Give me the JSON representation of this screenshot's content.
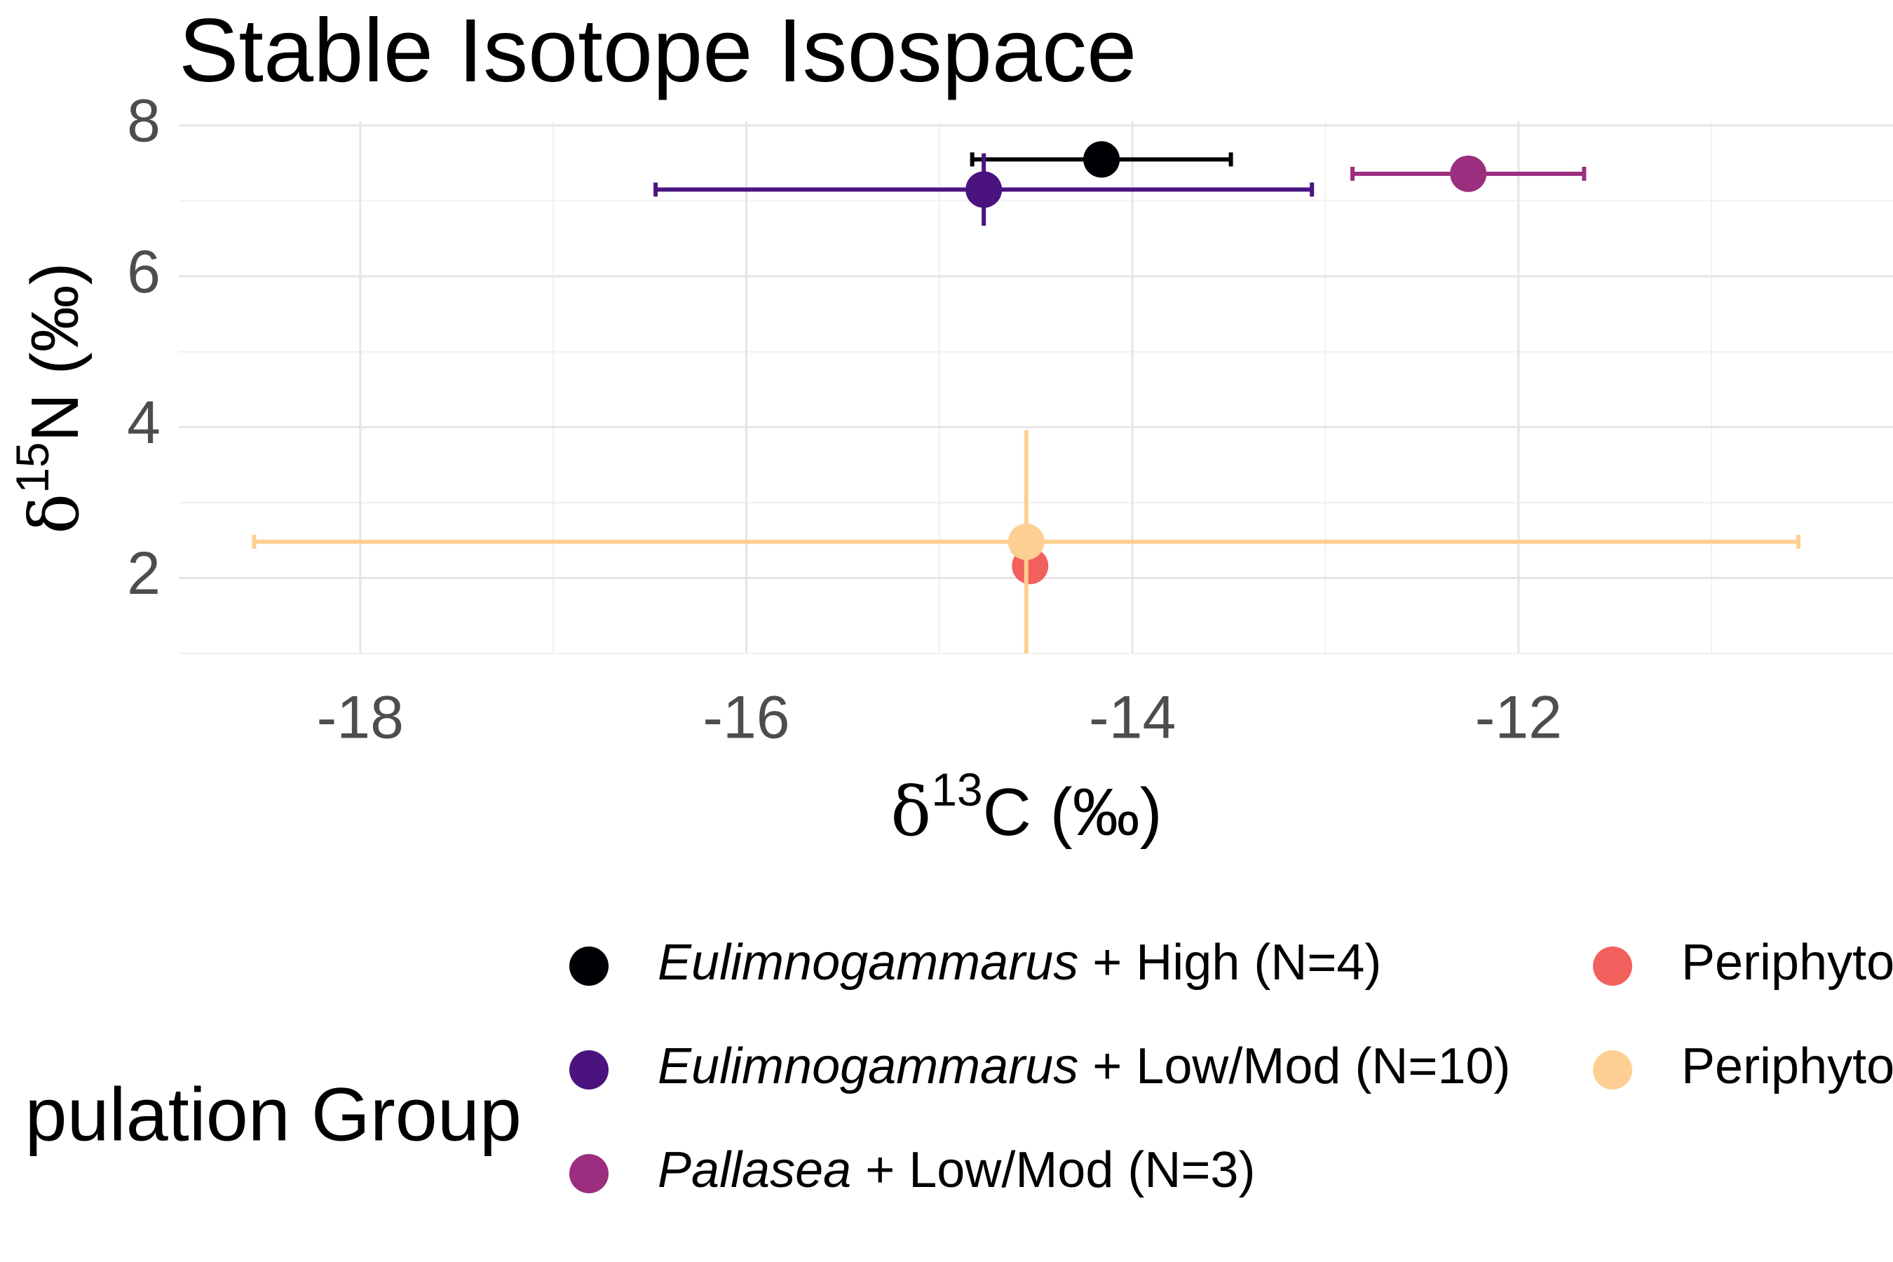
{
  "chart_data": {
    "type": "scatter",
    "title": "Stable Isotope Isospace",
    "x_label": {
      "symbol": "δ",
      "sup": "13",
      "text": "C (‰)"
    },
    "y_label": {
      "symbol": "δ",
      "sup": "15",
      "text": "N (‰)"
    },
    "xlim": [
      -18.94,
      -10.06
    ],
    "xticks": [
      -18,
      -16,
      -14,
      -12
    ],
    "ylim": [
      1.0,
      8.05
    ],
    "yticks": [
      2,
      4,
      6,
      8
    ],
    "grid": true,
    "legend_title": "pulation Group",
    "series": [
      {
        "name": "Eulimnogammarus + High (N=4)",
        "italic_first_word": true,
        "color": "#000004",
        "x": [
          -14.16
        ],
        "values": [
          7.55
        ],
        "xerr": [
          0.67
        ],
        "yerr": [
          0.1
        ]
      },
      {
        "name": "Eulimnogammarus + Low/Mod (N=10)",
        "italic_first_word": true,
        "color": "#4b1380",
        "x": [
          -14.77
        ],
        "values": [
          7.15
        ],
        "xerr": [
          1.7
        ],
        "yerr": [
          0.48
        ]
      },
      {
        "name": "Pallasea + Low/Mod (N=3)",
        "italic_first_word": true,
        "color": "#9c2e7f",
        "x": [
          -12.26
        ],
        "values": [
          7.36
        ],
        "xerr": [
          0.6
        ],
        "yerr": [
          0.05
        ]
      },
      {
        "name": "Periphyto",
        "italic_first_word": false,
        "color": "#f1605d",
        "x": [
          -14.53
        ],
        "values": [
          2.16
        ],
        "xerr": [
          0.05
        ],
        "yerr": [
          0.05
        ]
      },
      {
        "name": "Periphyto",
        "italic_first_word": false,
        "color": "#fecf92",
        "x": [
          -14.55
        ],
        "values": [
          2.48
        ],
        "xerr": [
          4.0
        ],
        "yerr": [
          1.48
        ]
      }
    ]
  }
}
